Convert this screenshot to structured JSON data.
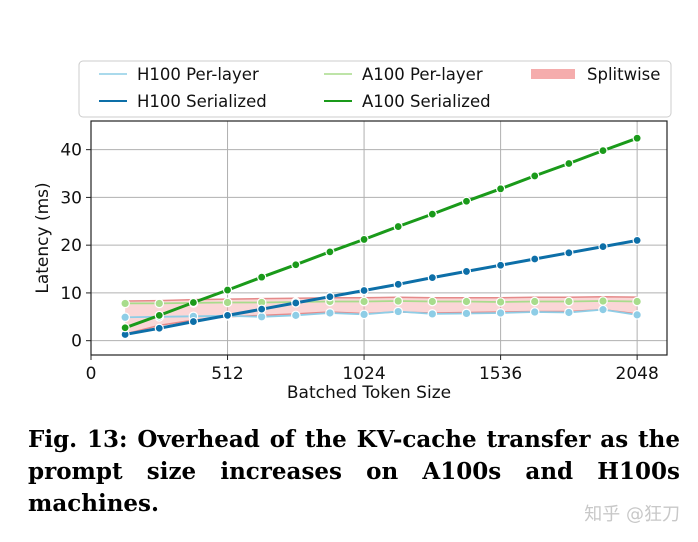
{
  "chart_data": {
    "type": "line",
    "title": "",
    "xlabel": "Batched Token Size",
    "ylabel": "Latency (ms)",
    "xlim": [
      0,
      2160
    ],
    "ylim": [
      -3,
      46
    ],
    "xticks": [
      0,
      512,
      1024,
      1536,
      2048
    ],
    "yticks": [
      0,
      10,
      20,
      30,
      40
    ],
    "grid": true,
    "legend_position": "top",
    "x": [
      128,
      256,
      384,
      512,
      640,
      768,
      896,
      1024,
      1152,
      1280,
      1408,
      1536,
      1664,
      1792,
      1920,
      2048
    ],
    "series": [
      {
        "name": "H100 Per-layer",
        "color": "#8ecde6",
        "style": "thin",
        "values": [
          4.9,
          5.0,
          5.1,
          5.2,
          5.0,
          5.3,
          5.8,
          5.5,
          6.1,
          5.6,
          5.7,
          5.8,
          6.0,
          5.9,
          6.5,
          5.4
        ]
      },
      {
        "name": "H100 Serialized",
        "color": "#0d6fa8",
        "style": "thick",
        "values": [
          1.3,
          2.6,
          4.0,
          5.3,
          6.6,
          7.9,
          9.2,
          10.5,
          11.8,
          13.2,
          14.5,
          15.8,
          17.1,
          18.4,
          19.7,
          21.0
        ]
      },
      {
        "name": "A100 Per-layer",
        "color": "#a8dc8c",
        "style": "thin",
        "values": [
          7.8,
          7.8,
          7.9,
          8.0,
          8.0,
          8.1,
          8.2,
          8.2,
          8.3,
          8.2,
          8.2,
          8.1,
          8.2,
          8.2,
          8.3,
          8.2
        ]
      },
      {
        "name": "A100 Serialized",
        "color": "#1a9a1a",
        "style": "thick",
        "values": [
          2.7,
          5.3,
          8.0,
          10.6,
          13.3,
          15.9,
          18.6,
          21.2,
          23.9,
          26.5,
          29.2,
          31.8,
          34.5,
          37.1,
          39.8,
          42.4
        ]
      },
      {
        "name": "Splitwise",
        "color": "#f4a3a3",
        "style": "band",
        "values": [
          1.4,
          3.2,
          4.3,
          5.0,
          5.3,
          5.6,
          6.0,
          5.7,
          6.0,
          5.8,
          5.9,
          6.0,
          6.1,
          6.1,
          6.5,
          5.6
        ],
        "upper": [
          8.3,
          8.4,
          8.6,
          8.7,
          8.8,
          8.9,
          9.0,
          9.0,
          9.1,
          9.0,
          9.0,
          9.0,
          9.1,
          9.1,
          9.2,
          9.1
        ]
      }
    ]
  },
  "caption": {
    "line1": "Fig. 13: Overhead of the KV-cache transfer as the",
    "line2": "prompt size increases on A100s and H100s machines."
  },
  "watermark": "知乎 @狂刀"
}
